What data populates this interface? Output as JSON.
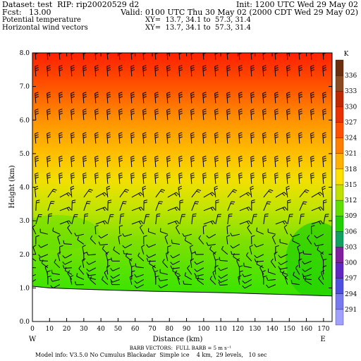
{
  "header": {
    "dataset": "Dataset: test  RIP: rip20020529 d2",
    "init": "Init: 1200 UTC Wed 29 May 02",
    "fcst": "Fcst:   13.00",
    "valid": "Valid: 0100 UTC Thu 30 May 02 (2000 CDT Wed 29 May 02)",
    "field1": "Potential temperature",
    "field1_xy": "XY=  13.7, 34.1 to  57.3, 31.4",
    "field2": "Horizontal wind vectors",
    "field2_xy": "XY=  13.7, 34.1 to  57.3, 31.4"
  },
  "footer": {
    "barbs": "BARB VECTORS:  FULL BARB = 5 m s⁻¹",
    "model": "Model info: V3.5.0 No Cumulus Blackadar  Simple ice    4 km,  29 levels,   10 sec"
  },
  "chart_data": {
    "type": "contour-fill cross-section",
    "x_label": "Distance (km)",
    "y_label": "Height (km)",
    "x_ticks": [
      0,
      10,
      20,
      30,
      40,
      50,
      60,
      70,
      80,
      90,
      100,
      110,
      120,
      130,
      140,
      150,
      160,
      170
    ],
    "x_tick_labels": [
      "0",
      "10",
      "20",
      "30",
      "40",
      "50",
      "60",
      "70",
      "80",
      "90",
      "100",
      "110",
      "120",
      "130",
      "140",
      "150",
      "160",
      "170"
    ],
    "y_ticks": [
      0,
      1,
      2,
      3,
      4,
      5,
      6,
      7,
      8
    ],
    "y_tick_labels": [
      "0.0",
      "1.0",
      "2.0",
      "3.0",
      "4.0",
      "5.0",
      "6.0",
      "7.0",
      "8.0"
    ],
    "xlim": [
      0,
      175
    ],
    "ylim": [
      0,
      8
    ],
    "end_labels": {
      "left": "W",
      "right": "E"
    },
    "colorbar": {
      "unit": "K",
      "levels": [
        291,
        294,
        297,
        300,
        303,
        306,
        309,
        312,
        315,
        318,
        321,
        324,
        327,
        330,
        333,
        336
      ],
      "labels": [
        "291",
        "294",
        "297",
        "300",
        "303",
        "306",
        "309",
        "312",
        "315",
        "318",
        "321",
        "324",
        "327",
        "330",
        "333",
        "336"
      ]
    },
    "terrain_height_km": [
      [
        0,
        1.05
      ],
      [
        10,
        1.0
      ],
      [
        30,
        0.96
      ],
      [
        50,
        0.93
      ],
      [
        70,
        0.9
      ],
      [
        90,
        0.88
      ],
      [
        110,
        0.86
      ],
      [
        130,
        0.83
      ],
      [
        150,
        0.8
      ],
      [
        175,
        0.76
      ]
    ]
  }
}
